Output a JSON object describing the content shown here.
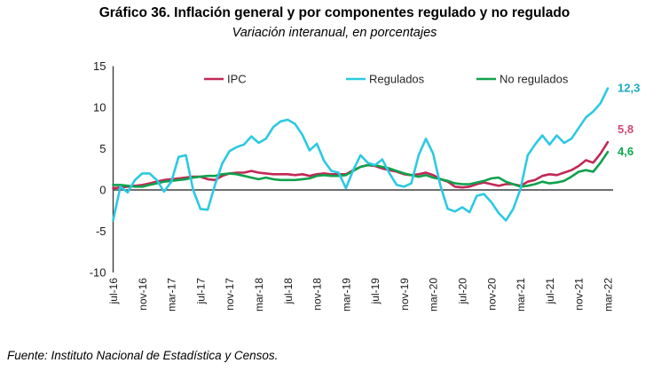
{
  "header": {
    "title": "Gráfico 36. Inflación general y por componentes regulado y no regulado",
    "subtitle": "Variación interanual, en porcentajes"
  },
  "footer": {
    "source": "Fuente: Instituto Nacional de Estadística y Censos."
  },
  "colors": {
    "axis": "#3f3f3f",
    "tick_text": "#1a1a1a",
    "legend_text": "#262626"
  },
  "chart_data": {
    "type": "line",
    "title": "Gráfico 36. Inflación general y por componentes regulado y no regulado",
    "subtitle": "Variación interanual, en porcentajes",
    "ylabel": "",
    "xlabel": "",
    "ylim": [
      -10,
      15
    ],
    "yticks": [
      15,
      10,
      5,
      0,
      -5,
      -10
    ],
    "grid": false,
    "legend_position": "top-inside",
    "x": [
      "jul-16",
      "ago-16",
      "sep-16",
      "oct-16",
      "nov-16",
      "dic-16",
      "ene-17",
      "feb-17",
      "mar-17",
      "abr-17",
      "may-17",
      "jun-17",
      "jul-17",
      "ago-17",
      "sep-17",
      "oct-17",
      "nov-17",
      "dic-17",
      "ene-18",
      "feb-18",
      "mar-18",
      "abr-18",
      "may-18",
      "jun-18",
      "jul-18",
      "ago-18",
      "sep-18",
      "oct-18",
      "nov-18",
      "dic-18",
      "ene-19",
      "feb-19",
      "mar-19",
      "abr-19",
      "may-19",
      "jun-19",
      "jul-19",
      "ago-19",
      "sep-19",
      "oct-19",
      "nov-19",
      "dic-19",
      "ene-20",
      "feb-20",
      "mar-20",
      "abr-20",
      "may-20",
      "jun-20",
      "jul-20",
      "ago-20",
      "sep-20",
      "oct-20",
      "nov-20",
      "dic-20",
      "ene-21",
      "feb-21",
      "mar-21",
      "abr-21",
      "may-21",
      "jun-21",
      "jul-21",
      "ago-21",
      "sep-21",
      "oct-21",
      "nov-21",
      "dic-21",
      "ene-22",
      "feb-22",
      "mar-22"
    ],
    "x_tick_every": 4,
    "x_ticks_shown": [
      "jul-16",
      "nov-16",
      "mar-17",
      "jul-17",
      "nov-17",
      "mar-18",
      "jul-18",
      "nov-18",
      "mar-19",
      "jul-19",
      "nov-19",
      "mar-20",
      "jul-20",
      "nov-20",
      "mar-21",
      "jul-21",
      "nov-21",
      "mar-22"
    ],
    "series": [
      {
        "name": "IPC",
        "color": "#C22857",
        "label_color": "#D04A72",
        "end_label": "5,8",
        "values": [
          0.2,
          0.3,
          0.4,
          0.5,
          0.6,
          0.8,
          1.0,
          1.2,
          1.3,
          1.4,
          1.5,
          1.6,
          1.6,
          1.3,
          1.2,
          1.7,
          2.0,
          2.1,
          2.1,
          2.3,
          2.1,
          2.0,
          1.9,
          1.9,
          1.9,
          1.8,
          1.9,
          1.7,
          1.9,
          2.0,
          1.9,
          1.9,
          1.9,
          2.4,
          2.8,
          3.0,
          2.9,
          2.6,
          2.4,
          2.2,
          1.9,
          1.8,
          1.9,
          2.1,
          1.8,
          1.3,
          1.0,
          0.4,
          0.3,
          0.4,
          0.7,
          0.9,
          0.7,
          0.5,
          0.7,
          0.7,
          0.5,
          1.0,
          1.2,
          1.7,
          1.9,
          1.8,
          2.1,
          2.4,
          2.9,
          3.6,
          3.3,
          4.4,
          5.8
        ]
      },
      {
        "name": "Regulados",
        "color": "#2CC9E2",
        "label_color": "#17AABF",
        "end_label": "12,3",
        "values": [
          -3.7,
          0.4,
          -0.3,
          1.2,
          2.0,
          2.0,
          1.2,
          -0.2,
          1.0,
          4.0,
          4.2,
          0.0,
          -2.3,
          -2.4,
          0.6,
          3.2,
          4.7,
          5.2,
          5.5,
          6.5,
          5.7,
          6.2,
          7.6,
          8.3,
          8.5,
          8.0,
          6.7,
          4.8,
          5.6,
          3.5,
          2.3,
          2.1,
          0.2,
          2.4,
          4.2,
          3.3,
          3.0,
          3.7,
          2.0,
          0.6,
          0.4,
          0.8,
          4.2,
          6.2,
          4.4,
          0.5,
          -2.3,
          -2.6,
          -2.1,
          -2.7,
          -0.7,
          -0.5,
          -1.5,
          -2.8,
          -3.7,
          -2.3,
          0.1,
          4.2,
          5.5,
          6.6,
          5.5,
          6.6,
          5.7,
          6.2,
          7.5,
          8.8,
          9.5,
          10.5,
          12.3
        ]
      },
      {
        "name": "No regulados",
        "color": "#0FA14C",
        "label_color": "#0AA64E",
        "end_label": "4,6",
        "values": [
          0.6,
          0.6,
          0.5,
          0.4,
          0.4,
          0.6,
          0.8,
          1.0,
          1.1,
          1.2,
          1.3,
          1.5,
          1.6,
          1.7,
          1.7,
          1.9,
          2.0,
          1.9,
          1.7,
          1.5,
          1.3,
          1.5,
          1.3,
          1.2,
          1.2,
          1.2,
          1.3,
          1.4,
          1.7,
          1.8,
          1.7,
          1.7,
          1.8,
          2.3,
          2.8,
          3.0,
          3.0,
          2.8,
          2.6,
          2.3,
          2.0,
          1.8,
          1.6,
          1.8,
          1.5,
          1.3,
          1.1,
          0.8,
          0.7,
          0.7,
          0.9,
          1.1,
          1.4,
          1.5,
          1.0,
          0.7,
          0.4,
          0.5,
          0.7,
          1.0,
          0.8,
          0.9,
          1.1,
          1.6,
          2.2,
          2.4,
          2.2,
          3.3,
          4.6
        ]
      }
    ]
  }
}
